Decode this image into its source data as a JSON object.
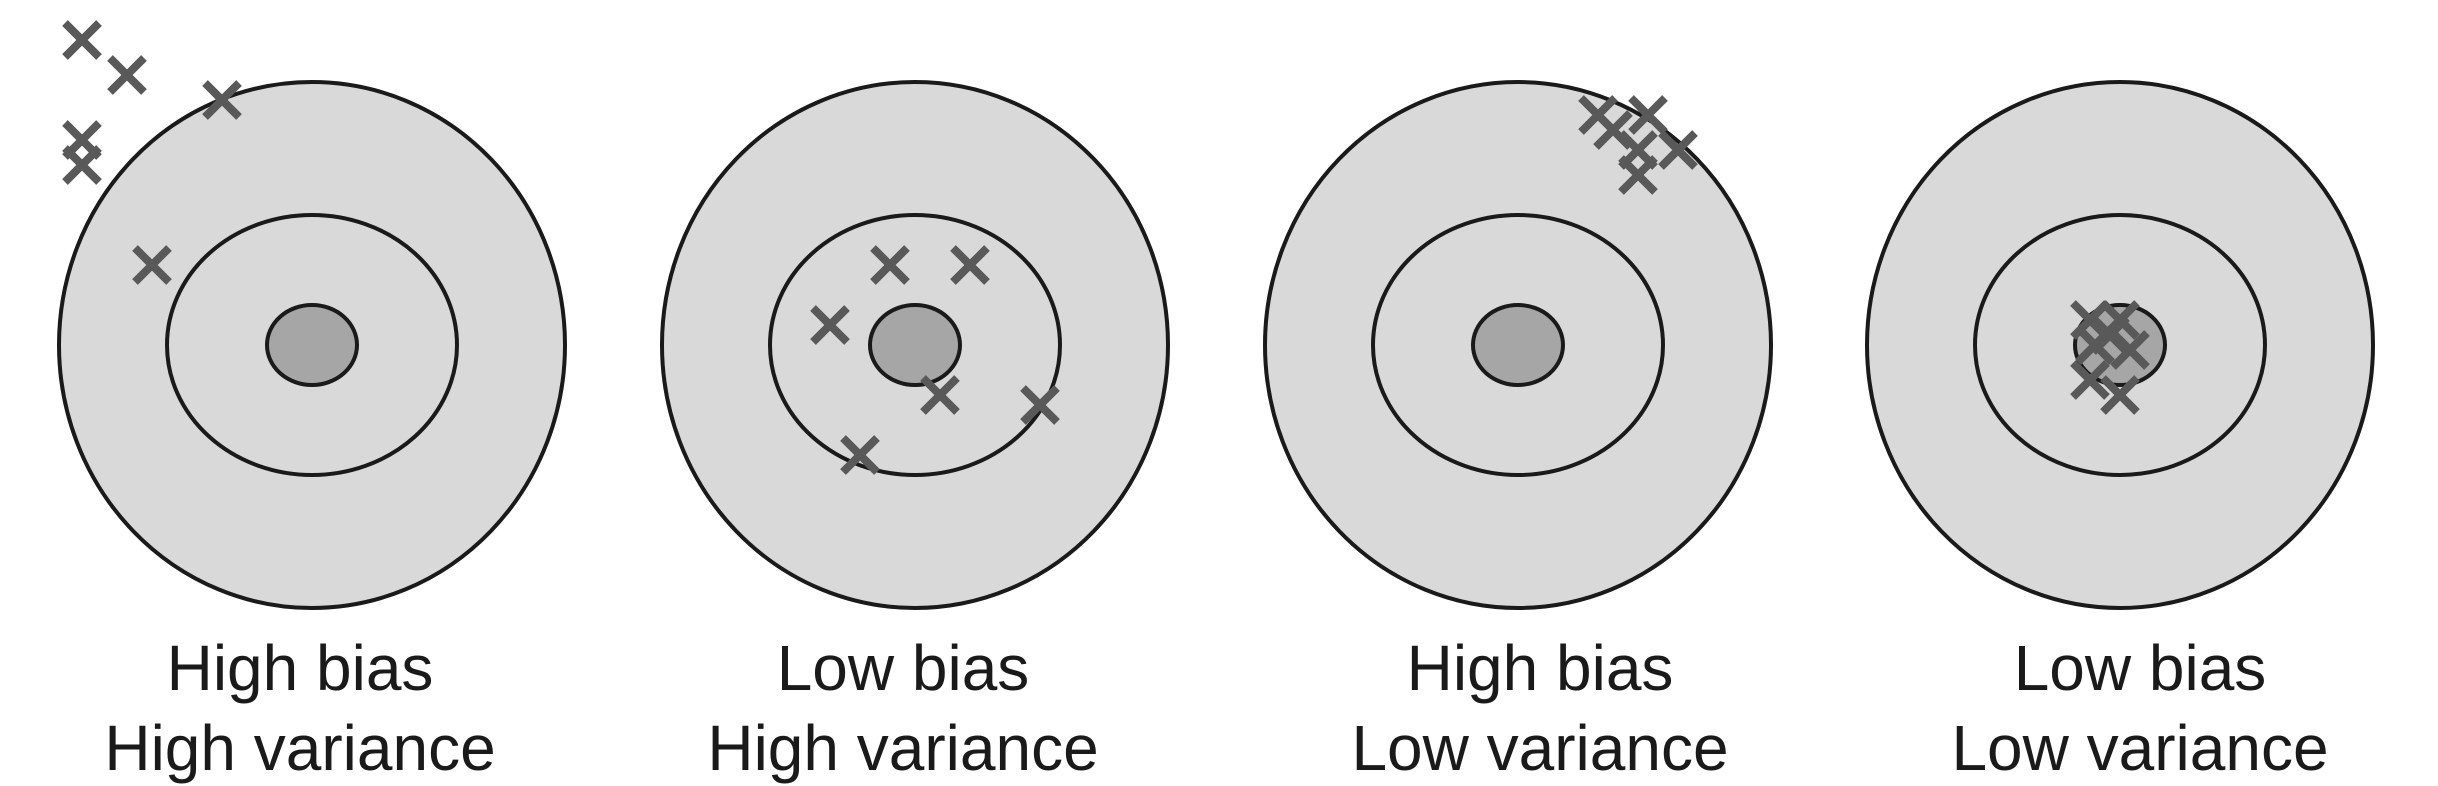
{
  "panels": [
    {
      "id": "high-bias-high-variance",
      "bias": "High bias",
      "variance": "High variance",
      "hits": [
        [
          -230,
          -305
        ],
        [
          -185,
          -270
        ],
        [
          -230,
          -180
        ],
        [
          -230,
          -205
        ],
        [
          -90,
          -245
        ],
        [
          -160,
          -80
        ]
      ]
    },
    {
      "id": "low-bias-high-variance",
      "bias": "Low bias",
      "variance": "High variance",
      "hits": [
        [
          -25,
          -80
        ],
        [
          55,
          -80
        ],
        [
          -85,
          -20
        ],
        [
          25,
          50
        ],
        [
          125,
          60
        ],
        [
          -55,
          110
        ]
      ]
    },
    {
      "id": "high-bias-low-variance",
      "bias": "High bias",
      "variance": "Low variance",
      "hits": [
        [
          80,
          -230
        ],
        [
          95,
          -215
        ],
        [
          130,
          -230
        ],
        [
          120,
          -195
        ],
        [
          160,
          -195
        ],
        [
          120,
          -170
        ]
      ]
    },
    {
      "id": "low-bias-low-variance",
      "bias": "Low bias",
      "variance": "Low variance",
      "hits": [
        [
          -30,
          -25
        ],
        [
          0,
          -25
        ],
        [
          -25,
          0
        ],
        [
          10,
          5
        ],
        [
          -30,
          35
        ],
        [
          0,
          50
        ],
        [
          -10,
          -10
        ]
      ]
    }
  ],
  "colors": {
    "outer_ring": "#d9d9d9",
    "bullseye": "#a6a6a6",
    "outline": "#1a1a1a",
    "hit_mark": "#595959"
  }
}
